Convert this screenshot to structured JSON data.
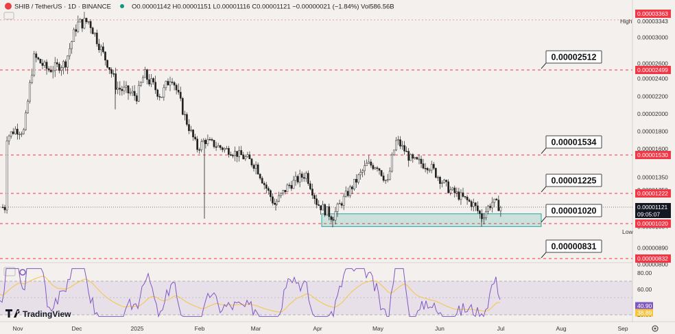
{
  "header": {
    "symbol": "SHIB / TetherUS · 1D · BINANCE",
    "ohlc_text": "O0.00001142 H0.00001151 L0.00001116 C0.00001121 −0.00000021 (−1.84%) Vol586.56B"
  },
  "branding": {
    "name": "TradingView"
  },
  "callouts": [
    {
      "label": "0.00002512",
      "value": 2.512e-05
    },
    {
      "label": "0.00001534",
      "value": 1.534e-05
    },
    {
      "label": "0.00001225",
      "value": 1.225e-05
    },
    {
      "label": "0.00001020",
      "value": 1.02e-05
    },
    {
      "label": "0.00000831",
      "value": 8.31e-06
    }
  ],
  "price_axis": {
    "ticks": [
      "0.00003000",
      "0.00002600",
      "0.00002400",
      "0.00002200",
      "0.00002000",
      "0.00001800",
      "0.00001600",
      "0.00001350",
      "0.00001250",
      "0.00001004",
      "0.00000890",
      "0.00000800"
    ],
    "high": {
      "tag": "High",
      "value": "0.00003343"
    },
    "low": {
      "tag": "Low",
      "value": "0.00001004"
    },
    "badges": [
      {
        "text": "0.00003363",
        "color": "#f23645"
      },
      {
        "text": "0.00002499",
        "color": "#f23645"
      },
      {
        "text": "0.00001530",
        "color": "#f23645"
      },
      {
        "text": "0.00001222",
        "color": "#f23645"
      },
      {
        "text": "0.00001020",
        "color": "#f23645"
      },
      {
        "text": "0.00000832",
        "color": "#f23645"
      },
      {
        "text": "0.00001121",
        "color": "#131722"
      }
    ],
    "countdown": "09:05:07"
  },
  "rsi_axis": {
    "ticks": [
      "80.00",
      "60.00",
      "20.00"
    ],
    "badges": [
      {
        "text": "40.90",
        "color": "#7e57c2"
      },
      {
        "text": "38.89",
        "color": "#f5c542"
      }
    ]
  },
  "time_axis": [
    "Nov",
    "Dec",
    "2025",
    "Feb",
    "Mar",
    "Apr",
    "May",
    "Jun",
    "Jul",
    "Aug",
    "Sep"
  ],
  "colors": {
    "up": "#089981",
    "down": "#f23645",
    "rsi": "#7e57c2",
    "rsi_ma": "#f5c542",
    "zone": "#26a69a",
    "level": "#f23645"
  },
  "chart_data": {
    "type": "candlestick",
    "interval": "1D",
    "levels": [
      2.499e-05,
      1.53e-05,
      1.222e-05,
      1.02e-05,
      8.32e-06
    ],
    "support_zone": [
      1.004e-05,
      1.08e-05
    ],
    "series": [
      {
        "date": "Nov",
        "close": 1.82e-05
      },
      {
        "date": "Dec",
        "close": 3.2e-05
      },
      {
        "date": "2025",
        "close": 2.2e-05
      },
      {
        "date": "Feb",
        "close": 1.6e-05
      },
      {
        "date": "Mar",
        "close": 1.45e-05
      },
      {
        "date": "Apr",
        "close": 1.15e-05
      },
      {
        "date": "May",
        "close": 1.45e-05
      },
      {
        "date": "Jun",
        "close": 1.35e-05
      },
      {
        "date": "Jul",
        "close": 1.121e-05
      }
    ],
    "rsi": {
      "last": 40.9,
      "ma_last": 38.89,
      "levels": [
        70,
        50,
        30
      ]
    }
  }
}
